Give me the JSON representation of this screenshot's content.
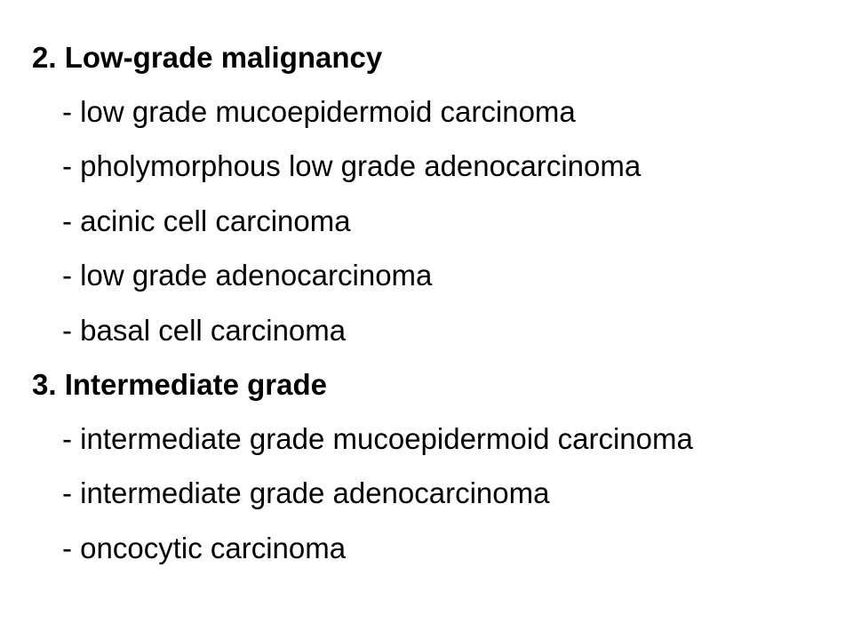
{
  "sections": [
    {
      "heading": "2. Low-grade malignancy",
      "items": [
        "- low grade mucoepidermoid carcinoma",
        "- pholymorphous low grade adenocarcinoma",
        "- acinic cell carcinoma",
        "- low grade adenocarcinoma",
        "- basal cell carcinoma"
      ]
    },
    {
      "heading": "3. Intermediate grade",
      "items": [
        "- intermediate grade mucoepidermoid carcinoma",
        "- intermediate grade adenocarcinoma",
        "- oncocytic carcinoma"
      ]
    }
  ]
}
